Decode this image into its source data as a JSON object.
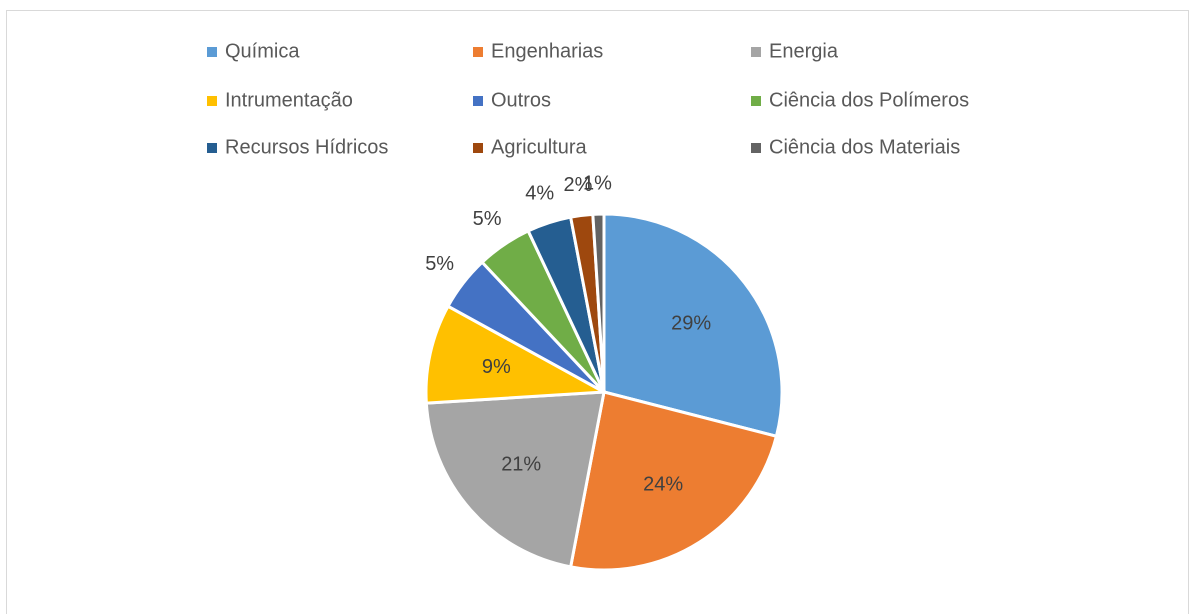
{
  "chart_data": {
    "type": "pie",
    "categories": [
      "Química",
      "Engenharias",
      "Energia",
      "Intrumentação",
      "Outros",
      "Ciência dos Polímeros",
      "Recursos Hídricos",
      "Agricultura",
      "Ciência dos Materiais"
    ],
    "values": [
      29,
      24,
      21,
      9,
      5,
      5,
      4,
      2,
      1
    ],
    "value_labels": [
      "29%",
      "24%",
      "21%",
      "9%",
      "5%",
      "5%",
      "4%",
      "2%",
      "1%"
    ],
    "colors": [
      "#5b9bd5",
      "#ed7d31",
      "#a5a5a5",
      "#ffc000",
      "#4472c4",
      "#70ad47",
      "#255e91",
      "#9e480e",
      "#636363"
    ],
    "legend": "top"
  }
}
